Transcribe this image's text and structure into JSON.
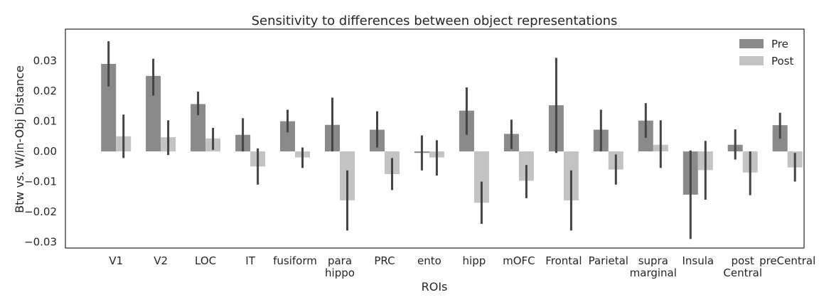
{
  "chart_data": {
    "type": "bar",
    "title": "Sensitivity to differences between object representations",
    "xlabel": "ROIs",
    "ylabel": "Btw vs. W/in-Obj Distance",
    "ylim": [
      -0.032,
      0.0405
    ],
    "yticks": [
      -0.03,
      -0.02,
      -0.01,
      0.0,
      0.01,
      0.02,
      0.03
    ],
    "ytick_labels": [
      "−0.03",
      "−0.02",
      "−0.01",
      "0.00",
      "0.01",
      "0.02",
      "0.03"
    ],
    "grid": false,
    "legend_position": "top-right",
    "categories": [
      [
        "V1"
      ],
      [
        "V2"
      ],
      [
        "LOC"
      ],
      [
        "IT"
      ],
      [
        "fusiform"
      ],
      [
        "para",
        "hippo"
      ],
      [
        "PRC"
      ],
      [
        "ento"
      ],
      [
        "hipp"
      ],
      [
        "mOFC"
      ],
      [
        "Frontal"
      ],
      [
        "Parietal"
      ],
      [
        "supra",
        "marginal"
      ],
      [
        "Insula"
      ],
      [
        "post",
        "Central"
      ],
      [
        "preCentral"
      ]
    ],
    "series": [
      {
        "name": "Pre",
        "color": "#8a8a8a",
        "values": [
          0.029,
          0.025,
          0.0157,
          0.0055,
          0.01,
          0.0088,
          0.0072,
          -0.0005,
          0.0135,
          0.0058,
          0.0153,
          0.0072,
          0.0102,
          -0.0143,
          0.0022,
          0.0087
        ],
        "ci_low": [
          0.0215,
          0.0185,
          0.012,
          0.0,
          0.0063,
          0.0,
          0.0013,
          -0.0063,
          0.0055,
          0.0008,
          -0.0005,
          0.0,
          0.0045,
          -0.029,
          -0.0027,
          0.0042
        ],
        "ci_high": [
          0.0365,
          0.0307,
          0.0198,
          0.011,
          0.0138,
          0.0178,
          0.0133,
          0.0053,
          0.0212,
          0.0105,
          0.031,
          0.0138,
          0.016,
          0.0003,
          0.0073,
          0.0128
        ]
      },
      {
        "name": "Post",
        "color": "#c3c3c3",
        "values": [
          0.005,
          0.0047,
          0.0043,
          -0.005,
          -0.002,
          -0.0162,
          -0.0075,
          -0.002,
          -0.017,
          -0.0097,
          -0.0162,
          -0.006,
          0.0022,
          -0.0062,
          -0.007,
          -0.0053
        ],
        "ci_low": [
          -0.0022,
          -0.0012,
          0.0005,
          -0.011,
          -0.0055,
          -0.0262,
          -0.0128,
          -0.008,
          -0.024,
          -0.0155,
          -0.0262,
          -0.011,
          -0.0055,
          -0.016,
          -0.0145,
          -0.01
        ],
        "ci_high": [
          0.0122,
          0.0103,
          0.0078,
          0.001,
          0.0013,
          -0.0063,
          -0.0022,
          0.0037,
          -0.01,
          -0.0045,
          -0.0063,
          -0.001,
          0.0103,
          0.0035,
          0.0,
          -0.0005
        ]
      }
    ]
  }
}
